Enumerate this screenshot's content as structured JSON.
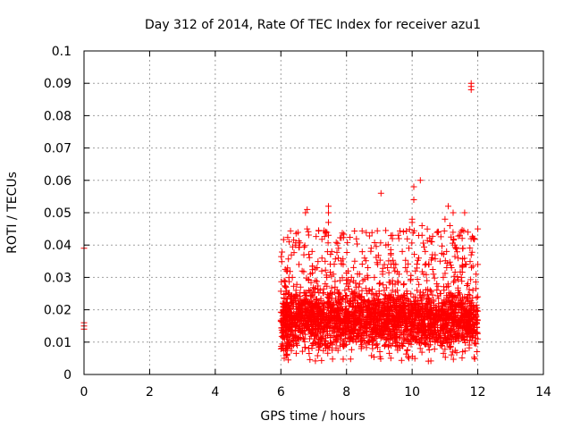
{
  "chart_data": {
    "type": "scatter",
    "title": "Day 312 of 2014, Rate Of TEC Index for receiver azu1",
    "xlabel": "GPS time / hours",
    "ylabel": "ROTI / TECUs",
    "xlim": [
      0,
      14
    ],
    "ylim": [
      0,
      0.1
    ],
    "xticks": [
      0,
      2,
      4,
      6,
      8,
      10,
      12,
      14
    ],
    "xtick_labels": [
      "0",
      "2",
      "4",
      "6",
      "8",
      "10",
      "12",
      "14"
    ],
    "yticks": [
      0,
      0.01,
      0.02,
      0.03,
      0.04,
      0.05,
      0.06,
      0.07,
      0.08,
      0.09,
      0.1
    ],
    "ytick_labels": [
      "0",
      "0.01",
      "0.02",
      "0.03",
      "0.04",
      "0.05",
      "0.06",
      "0.07",
      "0.08",
      "0.09",
      "0.1"
    ],
    "grid": true,
    "marker": "+",
    "color": "#ff0000",
    "series": [
      {
        "name": "ROTI",
        "points": [
          [
            0.0,
            0.039
          ],
          [
            0.0,
            0.016
          ],
          [
            0.0,
            0.015
          ],
          [
            0.0,
            0.014
          ],
          [
            6.1,
            0.012
          ],
          [
            6.1,
            0.005
          ],
          [
            6.1,
            0.02
          ],
          [
            6.1,
            0.029
          ],
          [
            6.15,
            0.015
          ],
          [
            6.15,
            0.025
          ],
          [
            6.2,
            0.008
          ],
          [
            6.2,
            0.032
          ],
          [
            6.25,
            0.014
          ],
          [
            6.25,
            0.041
          ],
          [
            6.3,
            0.022
          ],
          [
            6.3,
            0.01
          ],
          [
            6.35,
            0.018
          ],
          [
            6.35,
            0.03
          ],
          [
            6.4,
            0.012
          ],
          [
            6.4,
            0.024
          ],
          [
            6.45,
            0.04
          ],
          [
            6.5,
            0.016
          ],
          [
            6.5,
            0.009
          ],
          [
            6.55,
            0.021
          ],
          [
            6.55,
            0.034
          ],
          [
            6.6,
            0.013
          ],
          [
            6.6,
            0.027
          ],
          [
            6.65,
            0.018
          ],
          [
            6.65,
            0.032
          ],
          [
            6.7,
            0.037
          ],
          [
            6.7,
            0.011
          ],
          [
            6.75,
            0.05
          ],
          [
            6.75,
            0.022
          ],
          [
            6.8,
            0.051
          ],
          [
            6.8,
            0.045
          ],
          [
            6.8,
            0.015
          ],
          [
            6.85,
            0.026
          ],
          [
            6.85,
            0.008
          ],
          [
            6.9,
            0.02
          ],
          [
            6.9,
            0.031
          ],
          [
            6.95,
            0.038
          ],
          [
            6.95,
            0.014
          ],
          [
            7.0,
            0.024
          ],
          [
            7.0,
            0.019
          ],
          [
            7.05,
            0.012
          ],
          [
            7.05,
            0.029
          ],
          [
            7.1,
            0.017
          ],
          [
            7.1,
            0.033
          ],
          [
            7.15,
            0.022
          ],
          [
            7.15,
            0.01
          ],
          [
            7.2,
            0.015
          ],
          [
            7.2,
            0.026
          ],
          [
            7.25,
            0.036
          ],
          [
            7.3,
            0.02
          ],
          [
            7.3,
            0.013
          ],
          [
            7.35,
            0.028
          ],
          [
            7.35,
            0.009
          ],
          [
            7.4,
            0.018
          ],
          [
            7.4,
            0.03
          ],
          [
            7.45,
            0.052
          ],
          [
            7.45,
            0.05
          ],
          [
            7.45,
            0.047
          ],
          [
            7.45,
            0.043
          ],
          [
            7.5,
            0.016
          ],
          [
            7.5,
            0.025
          ],
          [
            7.55,
            0.012
          ],
          [
            7.55,
            0.038
          ],
          [
            7.6,
            0.02
          ],
          [
            7.6,
            0.031
          ],
          [
            7.65,
            0.014
          ],
          [
            7.65,
            0.027
          ],
          [
            7.7,
            0.018
          ],
          [
            7.7,
            0.01
          ],
          [
            7.75,
            0.036
          ],
          [
            7.75,
            0.023
          ],
          [
            7.8,
            0.015
          ],
          [
            7.8,
            0.029
          ],
          [
            7.85,
            0.021
          ],
          [
            7.85,
            0.012
          ],
          [
            7.9,
            0.034
          ],
          [
            7.9,
            0.017
          ],
          [
            7.95,
            0.026
          ],
          [
            7.95,
            0.009
          ],
          [
            8.0,
            0.019
          ],
          [
            8.0,
            0.028
          ],
          [
            8.05,
            0.014
          ],
          [
            8.05,
            0.032
          ],
          [
            8.1,
            0.022
          ],
          [
            8.1,
            0.011
          ],
          [
            8.15,
            0.016
          ],
          [
            8.15,
            0.03
          ],
          [
            8.2,
            0.025
          ],
          [
            8.2,
            0.013
          ],
          [
            8.25,
            0.035
          ],
          [
            8.25,
            0.019
          ],
          [
            8.3,
            0.01
          ],
          [
            8.3,
            0.027
          ],
          [
            8.35,
            0.017
          ],
          [
            8.35,
            0.022
          ],
          [
            8.4,
            0.031
          ],
          [
            8.4,
            0.014
          ],
          [
            8.45,
            0.024
          ],
          [
            8.45,
            0.008
          ],
          [
            8.5,
            0.02
          ],
          [
            8.5,
            0.029
          ],
          [
            8.55,
            0.015
          ],
          [
            8.55,
            0.036
          ],
          [
            8.6,
            0.021
          ],
          [
            8.6,
            0.012
          ],
          [
            8.65,
            0.033
          ],
          [
            8.65,
            0.018
          ],
          [
            8.7,
            0.026
          ],
          [
            8.7,
            0.01
          ],
          [
            8.75,
            0.016
          ],
          [
            8.75,
            0.039
          ],
          [
            8.8,
            0.022
          ],
          [
            8.8,
            0.013
          ],
          [
            8.85,
            0.03
          ],
          [
            8.85,
            0.019
          ],
          [
            8.9,
            0.025
          ],
          [
            8.9,
            0.009
          ],
          [
            8.95,
            0.014
          ],
          [
            8.95,
            0.034
          ],
          [
            9.0,
            0.018
          ],
          [
            9.0,
            0.028
          ],
          [
            9.05,
            0.056
          ],
          [
            9.05,
            0.012
          ],
          [
            9.1,
            0.022
          ],
          [
            9.1,
            0.031
          ],
          [
            9.15,
            0.016
          ],
          [
            9.15,
            0.026
          ],
          [
            9.2,
            0.04
          ],
          [
            9.2,
            0.011
          ],
          [
            9.25,
            0.02
          ],
          [
            9.25,
            0.033
          ],
          [
            9.3,
            0.014
          ],
          [
            9.3,
            0.024
          ],
          [
            9.35,
            0.037
          ],
          [
            9.35,
            0.017
          ],
          [
            9.4,
            0.043
          ],
          [
            9.4,
            0.042
          ],
          [
            9.4,
            0.029
          ],
          [
            9.45,
            0.012
          ],
          [
            9.45,
            0.021
          ],
          [
            9.5,
            0.034
          ],
          [
            9.5,
            0.015
          ],
          [
            9.55,
            0.026
          ],
          [
            9.55,
            0.009
          ],
          [
            9.6,
            0.019
          ],
          [
            9.6,
            0.031
          ],
          [
            9.65,
            0.023
          ],
          [
            9.65,
            0.013
          ],
          [
            9.7,
            0.038
          ],
          [
            9.7,
            0.017
          ],
          [
            9.75,
            0.028
          ],
          [
            9.75,
            0.011
          ],
          [
            9.8,
            0.021
          ],
          [
            9.8,
            0.033
          ],
          [
            9.85,
            0.015
          ],
          [
            9.85,
            0.025
          ],
          [
            9.9,
            0.039
          ],
          [
            9.9,
            0.005
          ],
          [
            9.95,
            0.018
          ],
          [
            9.95,
            0.029
          ],
          [
            10.0,
            0.048
          ],
          [
            10.0,
            0.047
          ],
          [
            10.0,
            0.012
          ],
          [
            10.05,
            0.058
          ],
          [
            10.05,
            0.054
          ],
          [
            10.05,
            0.022
          ],
          [
            10.1,
            0.032
          ],
          [
            10.1,
            0.016
          ],
          [
            10.15,
            0.026
          ],
          [
            10.15,
            0.01
          ],
          [
            10.2,
            0.02
          ],
          [
            10.2,
            0.036
          ],
          [
            10.25,
            0.06
          ],
          [
            10.25,
            0.014
          ],
          [
            10.3,
            0.046
          ],
          [
            10.3,
            0.043
          ],
          [
            10.3,
            0.024
          ],
          [
            10.35,
            0.017
          ],
          [
            10.35,
            0.031
          ],
          [
            10.4,
            0.038
          ],
          [
            10.4,
            0.012
          ],
          [
            10.45,
            0.022
          ],
          [
            10.45,
            0.029
          ],
          [
            10.5,
            0.015
          ],
          [
            10.5,
            0.034
          ],
          [
            10.55,
            0.019
          ],
          [
            10.55,
            0.026
          ],
          [
            10.6,
            0.041
          ],
          [
            10.6,
            0.011
          ],
          [
            10.65,
            0.023
          ],
          [
            10.65,
            0.031
          ],
          [
            10.7,
            0.016
          ],
          [
            10.7,
            0.037
          ],
          [
            10.75,
            0.02
          ],
          [
            10.75,
            0.028
          ],
          [
            10.8,
            0.044
          ],
          [
            10.8,
            0.013
          ],
          [
            10.85,
            0.025
          ],
          [
            10.85,
            0.035
          ],
          [
            10.9,
            0.018
          ],
          [
            10.9,
            0.009
          ],
          [
            10.95,
            0.03
          ],
          [
            10.95,
            0.022
          ],
          [
            11.0,
            0.048
          ],
          [
            11.0,
            0.015
          ],
          [
            11.05,
            0.027
          ],
          [
            11.05,
            0.038
          ],
          [
            11.1,
            0.052
          ],
          [
            11.1,
            0.02
          ],
          [
            11.15,
            0.046
          ],
          [
            11.15,
            0.012
          ],
          [
            11.2,
            0.033
          ],
          [
            11.2,
            0.024
          ],
          [
            11.25,
            0.05
          ],
          [
            11.25,
            0.017
          ],
          [
            11.3,
            0.029
          ],
          [
            11.3,
            0.04
          ],
          [
            11.35,
            0.021
          ],
          [
            11.35,
            0.011
          ],
          [
            11.4,
            0.036
          ],
          [
            11.4,
            0.026
          ],
          [
            11.45,
            0.016
          ],
          [
            11.45,
            0.043
          ],
          [
            11.5,
            0.03
          ],
          [
            11.5,
            0.019
          ],
          [
            11.55,
            0.039
          ],
          [
            11.55,
            0.013
          ],
          [
            11.6,
            0.05
          ],
          [
            11.6,
            0.024
          ],
          [
            11.65,
            0.034
          ],
          [
            11.65,
            0.018
          ],
          [
            11.7,
            0.044
          ],
          [
            11.7,
            0.028
          ],
          [
            11.75,
            0.022
          ],
          [
            11.75,
            0.014
          ],
          [
            11.8,
            0.09
          ],
          [
            11.8,
            0.089
          ],
          [
            11.8,
            0.088
          ],
          [
            11.8,
            0.037
          ],
          [
            11.85,
            0.026
          ],
          [
            11.85,
            0.012
          ],
          [
            11.9,
            0.042
          ],
          [
            11.9,
            0.02
          ],
          [
            11.95,
            0.031
          ],
          [
            11.95,
            0.016
          ],
          [
            12.0,
            0.045
          ],
          [
            12.0,
            0.024
          ],
          [
            12.0,
            0.011
          ],
          [
            12.0,
            0.034
          ]
        ]
      }
    ],
    "density": {
      "note": "dense cloud of ROTI samples between 6 h and 12 h",
      "x_range": [
        6.0,
        12.0
      ],
      "core_range": [
        0.008,
        0.026
      ],
      "spread_range": [
        0.004,
        0.045
      ]
    }
  }
}
